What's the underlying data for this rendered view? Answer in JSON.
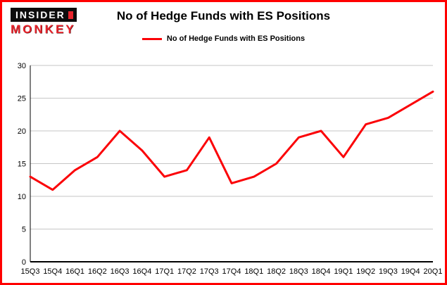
{
  "header": {
    "logo_line1": "INSIDER",
    "logo_line2": "MONKEY",
    "title": "No of Hedge Funds with ES Positions",
    "legend_label": "No of Hedge Funds with ES Positions"
  },
  "colors": {
    "frame_border": "#ff0000",
    "line": "#fb0207",
    "grid": "#c6c6c6",
    "axis": "#000000",
    "label": "#000000",
    "logo_red": "#e8242c",
    "logo_black": "#0d0d0d"
  },
  "chart_data": {
    "type": "line",
    "title": "No of Hedge Funds with ES Positions",
    "xlabel": "",
    "ylabel": "",
    "categories": [
      "15Q3",
      "15Q4",
      "16Q1",
      "16Q2",
      "16Q3",
      "16Q4",
      "17Q1",
      "17Q2",
      "17Q3",
      "17Q4",
      "18Q1",
      "18Q2",
      "18Q3",
      "18Q4",
      "19Q1",
      "19Q2",
      "19Q3",
      "19Q4",
      "20Q1"
    ],
    "series": [
      {
        "name": "No of Hedge Funds with ES Positions",
        "values": [
          13,
          11,
          14,
          16,
          20,
          17,
          13,
          14,
          19,
          12,
          13,
          15,
          19,
          20,
          16,
          21,
          22,
          24,
          26
        ]
      }
    ],
    "ylim": [
      0,
      30
    ],
    "yticks": [
      0,
      5,
      10,
      15,
      20,
      25,
      30
    ],
    "grid": true,
    "legend_position": "top"
  }
}
